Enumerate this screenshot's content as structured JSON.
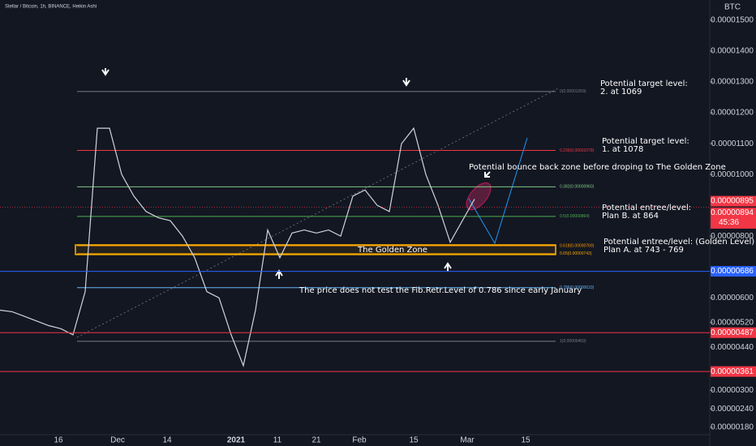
{
  "header": {
    "title": "Stellar / Bitcoin, 1h, BINANCE, Heikin Ashi",
    "currency": "BTC"
  },
  "price_axis": {
    "ylim": [
      1.8e-06,
      1.5e-05
    ],
    "ticks": [
      {
        "value": 1.5e-05,
        "label": "0.00001500"
      },
      {
        "value": 1.4e-05,
        "label": "0.00001400"
      },
      {
        "value": 1.3e-05,
        "label": "0.00001300"
      },
      {
        "value": 1.2e-05,
        "label": "0.00001200"
      },
      {
        "value": 1.1e-05,
        "label": "0.00001100"
      },
      {
        "value": 1e-05,
        "label": "0.00001000"
      },
      {
        "value": 8e-06,
        "label": "0.00000800"
      },
      {
        "value": 6e-06,
        "label": "0.00000600"
      },
      {
        "value": 5.2e-06,
        "label": "0.00000520"
      },
      {
        "value": 4.4e-06,
        "label": "0.00000440"
      },
      {
        "value": 3e-06,
        "label": "0.00000300"
      },
      {
        "value": 2.4e-06,
        "label": "0.00000240"
      },
      {
        "value": 1.8e-06,
        "label": "0.00000180"
      }
    ]
  },
  "time_axis": {
    "labels": [
      "16",
      "Dec",
      "14",
      "2021",
      "11",
      "21",
      "Feb",
      "15",
      "Mar",
      "15"
    ]
  },
  "price_tags": [
    {
      "value": 8.95e-06,
      "label": "0.00000895",
      "color": "#f23645",
      "countdown": null
    },
    {
      "value": 8.94e-06,
      "label": "0.00000894",
      "color": "#f23645",
      "countdown": "45:36"
    },
    {
      "value": 6.86e-06,
      "label": "0.00000686",
      "color": "#2962ff"
    },
    {
      "value": 4.87e-06,
      "label": "0.00000487",
      "color": "#f23645"
    },
    {
      "value": 3.61e-06,
      "label": "0.00000361",
      "color": "#f23645"
    }
  ],
  "fib_levels": [
    {
      "value": 1.269e-05,
      "label": "0(0.00001269)",
      "color": "#787b86"
    },
    {
      "value": 1.078e-05,
      "label": "0.236(0.00001078)",
      "color": "#f23645"
    },
    {
      "value": 9.6e-06,
      "label": "0.382(0.00000960)",
      "color": "#81c784"
    },
    {
      "value": 8.64e-06,
      "label": "0.5(0.00000864)",
      "color": "#4caf50"
    },
    {
      "value": 7.69e-06,
      "label": "0.618(0.00000769)",
      "color": "#ff9800"
    },
    {
      "value": 7.43e-06,
      "label": "0.65(0.00000743)",
      "color": "#f7a600"
    },
    {
      "value": 6.33e-06,
      "label": "0.786(0.00000633)",
      "color": "#64b5f6"
    },
    {
      "value": 4.59e-06,
      "label": "1(0.00000459)",
      "color": "#787b86"
    }
  ],
  "golden_zone": "The Golden Zone",
  "annotations": {
    "target2": [
      "Potential target level:",
      "2. at 1069"
    ],
    "target1": [
      "Potential target level:",
      "1. at 1078"
    ],
    "bounce": "Potential bounce back zone before droping to The Golden Zone",
    "planB": [
      "Potential entree/level:",
      "Plan B. at 864"
    ],
    "planA": [
      "Potential entree/level: (Golden Level)",
      "Plan A. at 743 - 769"
    ],
    "note": "The price does not test the Fib.Retr.Level of 0.786 since early January"
  },
  "price_path": [
    5.6e-06,
    5.55e-06,
    5.4e-06,
    5.25e-06,
    5.1e-06,
    5e-06,
    4.8e-06,
    6.2e-06,
    1.15e-05,
    1.15e-05,
    1e-05,
    9.3e-06,
    8.8e-06,
    8.6e-06,
    8.5e-06,
    8e-06,
    7.3e-06,
    6.2e-06,
    6e-06,
    4.8e-06,
    3.8e-06,
    5.6e-06,
    8.2e-06,
    7.3e-06,
    8.1e-06,
    8.2e-06,
    8.1e-06,
    8.2e-06,
    8e-06,
    9.3e-06,
    9.5e-06,
    9e-06,
    8.8e-06,
    1.1e-05,
    1.15e-05,
    1e-05,
    9e-06,
    7.8e-06,
    8.5e-06,
    9.2e-06
  ]
}
